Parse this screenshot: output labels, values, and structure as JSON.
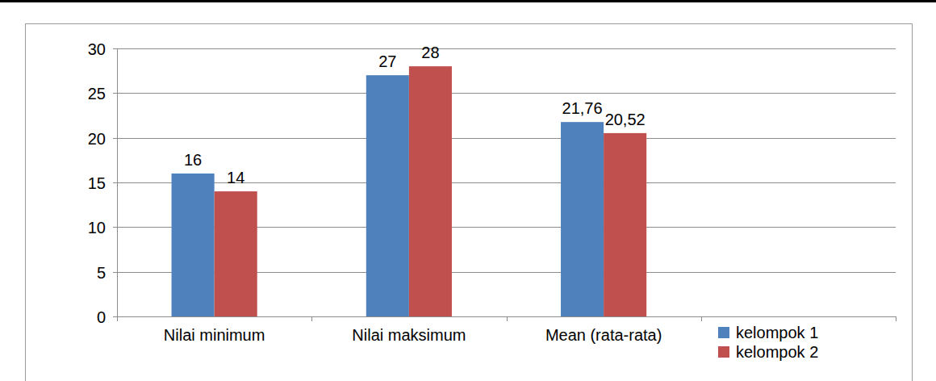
{
  "chart_data": {
    "type": "bar",
    "categories": [
      "Nilai minimum",
      "Nilai maksimum",
      "Mean (rata-rata)",
      null
    ],
    "series": [
      {
        "name": "kelompok 1",
        "color": "#4f81bd",
        "values": [
          16,
          27,
          21.76,
          null
        ],
        "value_labels": [
          "16",
          "27",
          "21,76",
          null
        ]
      },
      {
        "name": "kelompok 2",
        "color": "#c0504d",
        "values": [
          14,
          28,
          20.52,
          null
        ],
        "value_labels": [
          "14",
          "28",
          "20,52",
          null
        ]
      }
    ],
    "ylim": [
      0,
      30
    ],
    "yticks": [
      0,
      5,
      10,
      15,
      20,
      25,
      30
    ],
    "grid": true,
    "legend": "lower right",
    "data_labels": true
  }
}
